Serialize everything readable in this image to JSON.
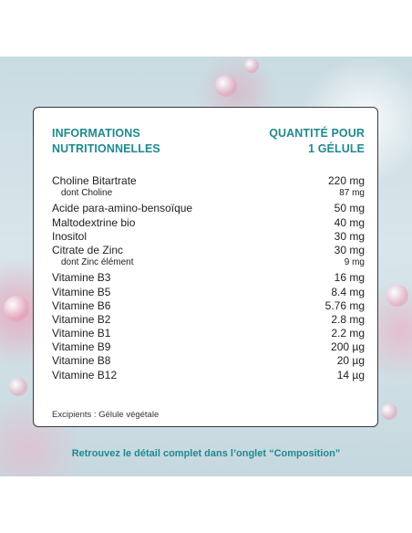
{
  "card": {
    "header_left": [
      "INFORMATIONS",
      "NUTRITIONNELLES"
    ],
    "header_right": [
      "QUANTITÉ POUR",
      "1 GÉLULE"
    ],
    "rows": [
      {
        "name": "Choline Bitartrate",
        "value": "220 mg",
        "sub": false
      },
      {
        "name": "dont Choline",
        "value": "87 mg",
        "sub": true
      },
      {
        "name": "Acide para-amino-bensoïque",
        "value": "50 mg",
        "sub": false
      },
      {
        "name": "Maltodextrine bio",
        "value": "40 mg",
        "sub": false
      },
      {
        "name": "Inositol",
        "value": "30 mg",
        "sub": false
      },
      {
        "name": "Citrate de Zinc",
        "value": "30 mg",
        "sub": false
      },
      {
        "name": "dont Zinc élément",
        "value": "9 mg",
        "sub": true
      },
      {
        "name": "Vitamine B3",
        "value": "16 mg",
        "sub": false
      },
      {
        "name": "Vitamine B5",
        "value": "8.4 mg",
        "sub": false
      },
      {
        "name": "Vitamine B6",
        "value": "5.76 mg",
        "sub": false
      },
      {
        "name": "Vitamine B2",
        "value": "2.8 mg",
        "sub": false
      },
      {
        "name": "Vitamine B1",
        "value": "2.2 mg",
        "sub": false
      },
      {
        "name": "Vitamine B9",
        "value": "200 µg",
        "sub": false
      },
      {
        "name": "Vitamine B8",
        "value": "20 µg",
        "sub": false
      },
      {
        "name": "Vitamine B12",
        "value": "14 µg",
        "sub": false
      }
    ],
    "excipients": "Excipients : Gélule végétale"
  },
  "footnote": "Retrouvez le détail complet dans l’onglet “Composition”"
}
